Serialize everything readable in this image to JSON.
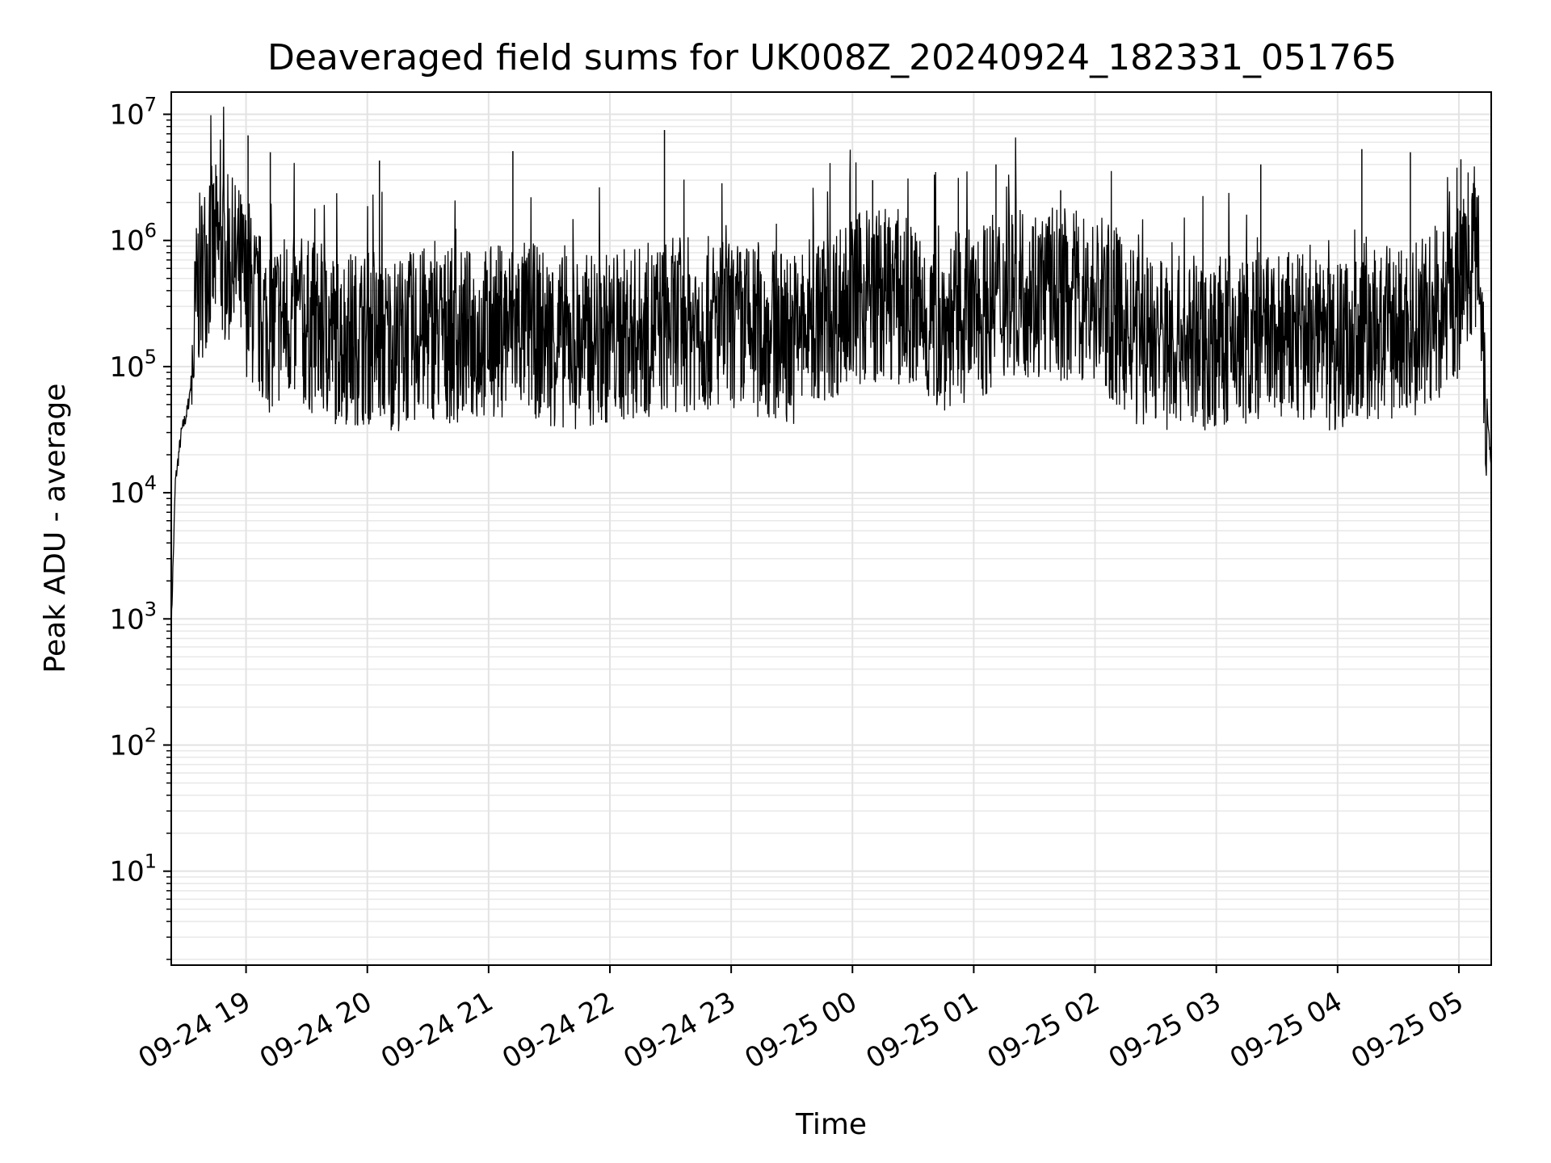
{
  "chart_data": {
    "type": "line",
    "title": "Deaveraged field sums for UK008Z_20240924_182331_051765",
    "xlabel": "Time",
    "ylabel": "Peak ADU - average",
    "yscale": "log",
    "ylim": [
      1.8,
      15000000
    ],
    "xlim": [
      "2024-09-24 18:23",
      "2024-09-25 05:16"
    ],
    "grid": true,
    "grid_minor": true,
    "line_color": "#000000",
    "x_ticks": [
      {
        "value": "2024-09-24 19:00",
        "label": "09-24 19"
      },
      {
        "value": "2024-09-24 20:00",
        "label": "09-24 20"
      },
      {
        "value": "2024-09-24 21:00",
        "label": "09-24 21"
      },
      {
        "value": "2024-09-24 22:00",
        "label": "09-24 22"
      },
      {
        "value": "2024-09-24 23:00",
        "label": "09-24 23"
      },
      {
        "value": "2024-09-25 00:00",
        "label": "09-25 00"
      },
      {
        "value": "2024-09-25 01:00",
        "label": "09-25 01"
      },
      {
        "value": "2024-09-25 02:00",
        "label": "09-25 02"
      },
      {
        "value": "2024-09-25 03:00",
        "label": "09-25 03"
      },
      {
        "value": "2024-09-25 04:00",
        "label": "09-25 04"
      },
      {
        "value": "2024-09-25 05:00",
        "label": "09-25 05"
      }
    ],
    "y_ticks": [
      {
        "value": 10,
        "base": "10",
        "exp": "1"
      },
      {
        "value": 100,
        "base": "10",
        "exp": "2"
      },
      {
        "value": 1000,
        "base": "10",
        "exp": "3"
      },
      {
        "value": 10000,
        "base": "10",
        "exp": "4"
      },
      {
        "value": 100000,
        "base": "10",
        "exp": "5"
      },
      {
        "value": 1000000,
        "base": "10",
        "exp": "6"
      },
      {
        "value": 10000000,
        "base": "10",
        "exp": "7"
      }
    ],
    "series": [
      {
        "x": [
          "2024-09-24 18:23",
          "2024-09-24 18:25",
          "2024-09-24 18:28",
          "2024-09-24 18:31",
          "2024-09-24 18:33",
          "2024-09-24 18:36",
          "2024-09-24 18:41",
          "2024-09-24 18:46",
          "2024-09-24 18:51",
          "2024-09-24 18:56",
          "2024-09-24 19:00",
          "2024-09-24 19:06",
          "2024-09-24 19:12",
          "2024-09-24 19:20",
          "2024-09-24 19:30",
          "2024-09-24 19:45",
          "2024-09-24 20:00",
          "2024-09-24 20:15",
          "2024-09-24 20:30",
          "2024-09-24 20:45",
          "2024-09-24 21:00",
          "2024-09-24 21:15",
          "2024-09-24 21:30",
          "2024-09-24 21:40",
          "2024-09-24 22:00",
          "2024-09-24 22:15",
          "2024-09-24 22:30",
          "2024-09-24 22:45",
          "2024-09-24 23:00",
          "2024-09-24 23:30",
          "2024-09-25 00:00",
          "2024-09-25 00:20",
          "2024-09-25 00:40",
          "2024-09-25 01:00",
          "2024-09-25 01:20",
          "2024-09-25 01:40",
          "2024-09-25 02:00",
          "2024-09-25 02:20",
          "2024-09-25 02:40",
          "2024-09-25 03:00",
          "2024-09-25 03:30",
          "2024-09-25 03:58",
          "2024-09-25 04:15",
          "2024-09-25 04:30",
          "2024-09-25 04:45",
          "2024-09-25 05:00",
          "2024-09-25 05:05",
          "2024-09-25 05:10",
          "2024-09-25 05:14",
          "2024-09-25 05:16"
        ],
        "y": [
          800,
          12000,
          30000,
          45000,
          80000,
          500000,
          900000,
          1000000,
          800000,
          700000,
          500000,
          300000,
          250000,
          300000,
          250000,
          200000,
          200000,
          180000,
          220000,
          200000,
          220000,
          250000,
          200000,
          180000,
          200000,
          220000,
          250000,
          260000,
          240000,
          200000,
          400000,
          450000,
          250000,
          300000,
          500000,
          450000,
          400000,
          200000,
          180000,
          180000,
          200000,
          180000,
          200000,
          220000,
          250000,
          450000,
          1000000,
          1100000,
          40000,
          18000
        ]
      }
    ],
    "spikes": [
      {
        "x": "2024-09-24 19:01",
        "y": 6800000
      },
      {
        "x": "2024-09-24 19:12",
        "y": 5000000
      },
      {
        "x": "2024-09-24 20:06",
        "y": 4300000
      },
      {
        "x": "2024-09-24 21:12",
        "y": 5100000
      },
      {
        "x": "2024-09-24 22:27",
        "y": 7500000
      },
      {
        "x": "2024-09-25 00:10",
        "y": 3000000
      },
      {
        "x": "2024-09-25 01:11",
        "y": 4000000
      },
      {
        "x": "2024-09-25 01:43",
        "y": 2500000
      },
      {
        "x": "2024-09-25 03:22",
        "y": 4000000
      },
      {
        "x": "2024-09-25 04:12",
        "y": 5300000
      },
      {
        "x": "2024-09-25 04:36",
        "y": 5000000
      },
      {
        "x": "2024-09-25 05:01",
        "y": 4400000
      }
    ]
  }
}
